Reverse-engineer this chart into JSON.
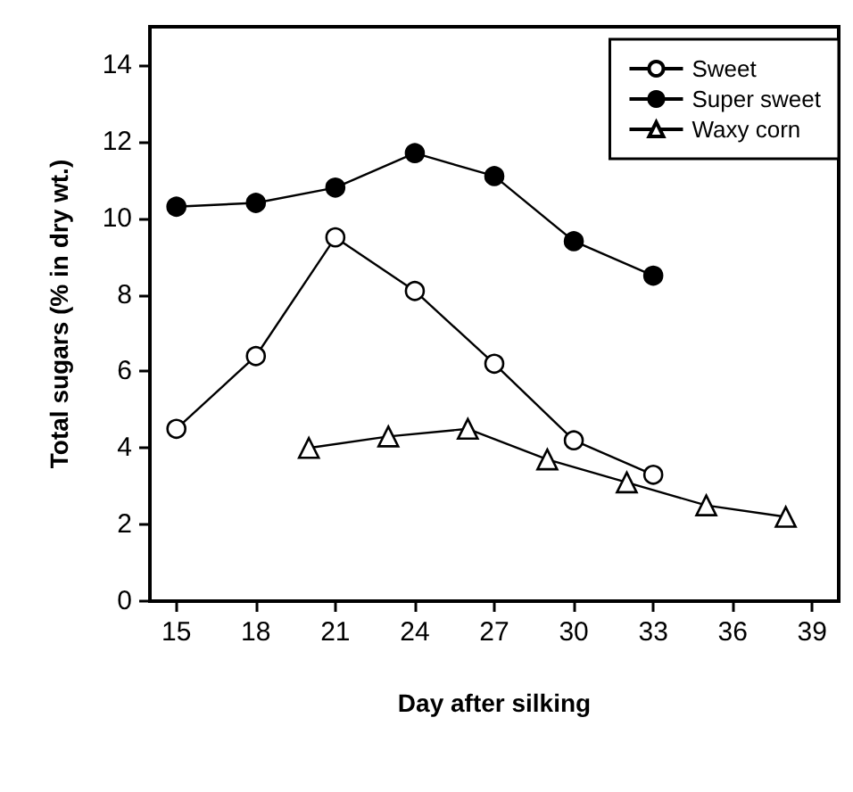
{
  "chart_data": {
    "type": "line",
    "xlabel": "Day after silking",
    "ylabel": "Total sugars (% in dry wt.)",
    "xlim": [
      14,
      40
    ],
    "xticks": [
      15,
      18,
      21,
      24,
      27,
      30,
      33,
      36,
      39
    ],
    "ylim": [
      0,
      15
    ],
    "yticks": [
      0,
      2,
      4,
      6,
      8,
      10,
      12,
      14
    ],
    "grid": false,
    "legend": "top right",
    "line_style": "solid",
    "series": [
      {
        "name": "Sweet",
        "color": "#000000",
        "marker": "circle-open",
        "x": [
          15,
          18,
          21,
          24,
          27,
          30,
          33
        ],
        "values": [
          4.5,
          6.4,
          9.5,
          8.1,
          6.2,
          4.2,
          3.3
        ]
      },
      {
        "name": "Super sweet",
        "color": "#000000",
        "marker": "circle",
        "x": [
          15,
          18,
          21,
          24,
          27,
          30,
          33
        ],
        "values": [
          10.3,
          10.4,
          10.8,
          11.7,
          11.1,
          9.4,
          8.5
        ]
      },
      {
        "name": "Waxy corn",
        "color": "#000000",
        "marker": "triangle-open",
        "x": [
          20,
          23,
          26,
          29,
          32,
          35,
          38
        ],
        "values": [
          4.0,
          4.3,
          4.5,
          3.7,
          3.1,
          2.5,
          2.2
        ]
      }
    ]
  }
}
